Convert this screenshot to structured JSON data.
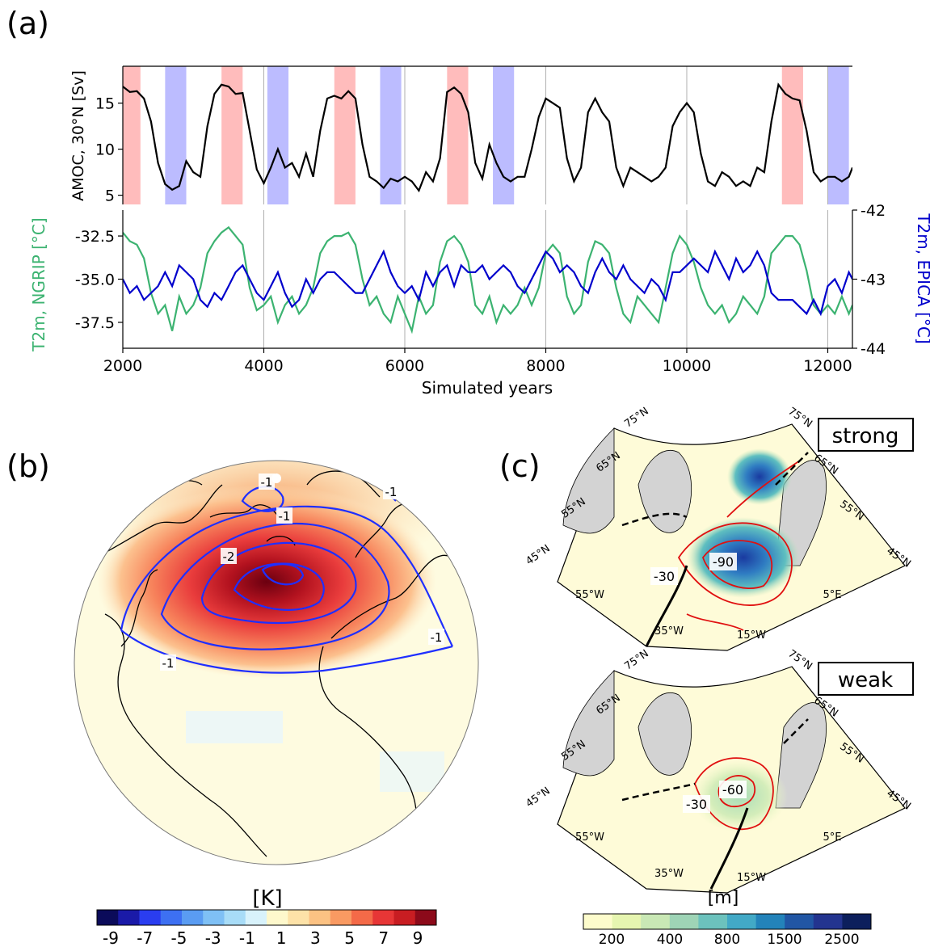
{
  "panel_labels": {
    "a": "(a)",
    "b": "(b)",
    "c": "(c)"
  },
  "panel_a": {
    "x_label": "Simulated years",
    "x_ticks": [
      "2000",
      "4000",
      "6000",
      "8000",
      "10000",
      "12000"
    ],
    "amoc_label": "AMOC, 30°N [Sv]",
    "amoc_ticks": [
      "5",
      "10",
      "15"
    ],
    "ngrip_label": "T2m, NGRIP [°C]",
    "ngrip_ticks": [
      "-32.5",
      "-35.0",
      "-37.5"
    ],
    "epica_label": "T2m, EPICA [°C]",
    "epica_ticks": [
      "-42",
      "-43",
      "-44"
    ]
  },
  "panel_b": {
    "contour_labels": [
      "-1",
      "-1",
      "-2",
      "-1",
      "-1",
      "-1"
    ],
    "colorbar_title": "[K]",
    "colorbar_ticks": [
      "-9",
      "-7",
      "-5",
      "-3",
      "-1",
      "1",
      "3",
      "5",
      "7",
      "9"
    ]
  },
  "panel_c": {
    "strong_title": "strong",
    "weak_title": "weak",
    "lat_labels": [
      "75°N",
      "65°N",
      "55°N",
      "45°N"
    ],
    "lon_labels": [
      "55°W",
      "35°W",
      "15°W",
      "5°E"
    ],
    "strong_contours": [
      "-30",
      "-90"
    ],
    "weak_contours": [
      "-30",
      "-60"
    ],
    "colorbar_title": "[m]",
    "colorbar_ticks": [
      "200",
      "400",
      "800",
      "1500",
      "2500"
    ]
  },
  "colors": {
    "amoc": "#000000",
    "ngrip": "#3cb371",
    "epica": "#0000cc",
    "strong_band": "#ffbcbc",
    "weak_band": "#bcbcff",
    "contour_b": "#1f2fff",
    "contour_c": "#e01010"
  },
  "chart_data": [
    {
      "type": "line",
      "title": "",
      "xlabel": "Simulated years",
      "ylabel": "AMOC, 30°N [Sv]",
      "xlim": [
        2000,
        12350
      ],
      "ylim": [
        4,
        19
      ],
      "grid": true,
      "strong_periods": [
        [
          2000,
          2250
        ],
        [
          3400,
          3700
        ],
        [
          5000,
          5300
        ],
        [
          6600,
          6900
        ],
        [
          11350,
          11650
        ]
      ],
      "weak_periods": [
        [
          2600,
          2900
        ],
        [
          4050,
          4350
        ],
        [
          5650,
          5950
        ],
        [
          7250,
          7550
        ],
        [
          12000,
          12300
        ]
      ],
      "series": [
        {
          "name": "AMOC, 30°N [Sv]",
          "x": [
            2000,
            2100,
            2200,
            2300,
            2400,
            2500,
            2600,
            2700,
            2800,
            2900,
            3000,
            3100,
            3200,
            3300,
            3400,
            3500,
            3600,
            3700,
            3800,
            3900,
            4000,
            4100,
            4200,
            4300,
            4400,
            4500,
            4600,
            4700,
            4800,
            4900,
            5000,
            5100,
            5200,
            5300,
            5400,
            5500,
            5600,
            5700,
            5800,
            5900,
            6000,
            6100,
            6200,
            6300,
            6400,
            6500,
            6600,
            6700,
            6800,
            6900,
            7000,
            7100,
            7200,
            7300,
            7400,
            7500,
            7600,
            7700,
            7800,
            7900,
            8000,
            8100,
            8200,
            8300,
            8400,
            8500,
            8600,
            8700,
            8800,
            8900,
            9000,
            9100,
            9200,
            9300,
            9400,
            9500,
            9600,
            9700,
            9800,
            9900,
            10000,
            10100,
            10200,
            10300,
            10400,
            10500,
            10600,
            10700,
            10800,
            10900,
            11000,
            11100,
            11200,
            11300,
            11400,
            11500,
            11600,
            11700,
            11800,
            11900,
            12000,
            12100,
            12200,
            12300,
            12350
          ],
          "values": [
            16.8,
            16.2,
            16.3,
            15.5,
            13.0,
            8.5,
            6.2,
            5.6,
            6.0,
            8.7,
            7.5,
            7.0,
            12.5,
            16.0,
            17.0,
            16.8,
            16.0,
            16.1,
            12.0,
            7.8,
            6.3,
            8.0,
            10.0,
            8.0,
            8.5,
            7.0,
            9.5,
            7.0,
            12.0,
            15.5,
            15.8,
            15.5,
            16.3,
            15.5,
            10.5,
            7.0,
            6.5,
            5.8,
            6.8,
            6.5,
            7.0,
            6.5,
            5.5,
            7.5,
            6.5,
            9.0,
            16.2,
            16.7,
            16.0,
            14.0,
            8.5,
            6.8,
            10.5,
            8.5,
            7.0,
            6.5,
            7.0,
            7.0,
            10.0,
            13.5,
            15.5,
            15.0,
            14.5,
            9.0,
            6.5,
            8.0,
            14.0,
            15.5,
            14.0,
            13.0,
            8.0,
            6.0,
            8.0,
            7.5,
            7.0,
            6.5,
            7.0,
            8.0,
            12.5,
            14.0,
            15.0,
            14.0,
            9.5,
            6.5,
            6.0,
            7.5,
            7.0,
            6.0,
            6.5,
            6.0,
            8.0,
            7.5,
            13.0,
            17.0,
            16.0,
            15.5,
            15.3,
            12.0,
            7.5,
            6.5,
            7.0,
            7.0,
            6.5,
            7.0,
            8.0
          ]
        },
        {
          "name": "T2m, NGRIP [°C]",
          "x": [
            2000,
            2100,
            2200,
            2300,
            2400,
            2500,
            2600,
            2700,
            2800,
            2900,
            3000,
            3100,
            3200,
            3300,
            3400,
            3500,
            3600,
            3700,
            3800,
            3900,
            4000,
            4100,
            4200,
            4300,
            4400,
            4500,
            4600,
            4700,
            4800,
            4900,
            5000,
            5100,
            5200,
            5300,
            5400,
            5500,
            5600,
            5700,
            5800,
            5900,
            6000,
            6100,
            6200,
            6300,
            6400,
            6500,
            6600,
            6700,
            6800,
            6900,
            7000,
            7100,
            7200,
            7300,
            7400,
            7500,
            7600,
            7700,
            7800,
            7900,
            8000,
            8100,
            8200,
            8300,
            8400,
            8500,
            8600,
            8700,
            8800,
            8900,
            9000,
            9100,
            9200,
            9300,
            9400,
            9500,
            9600,
            9700,
            9800,
            9900,
            10000,
            10100,
            10200,
            10300,
            10400,
            10500,
            10600,
            10700,
            10800,
            10900,
            11000,
            11100,
            11200,
            11300,
            11400,
            11500,
            11600,
            11700,
            11800,
            11900,
            12000,
            12100,
            12200,
            12300,
            12350
          ],
          "values": [
            -32.3,
            -32.8,
            -33.0,
            -33.8,
            -35.8,
            -37.0,
            -36.5,
            -38.0,
            -36.0,
            -37.0,
            -36.5,
            -35.5,
            -33.5,
            -32.8,
            -32.3,
            -32.0,
            -32.5,
            -33.0,
            -35.5,
            -36.8,
            -36.5,
            -36.0,
            -37.5,
            -36.5,
            -36.0,
            -37.0,
            -36.5,
            -35.5,
            -33.5,
            -32.8,
            -32.5,
            -32.5,
            -32.3,
            -33.0,
            -35.0,
            -36.5,
            -36.0,
            -37.0,
            -37.5,
            -36.0,
            -37.0,
            -38.0,
            -36.0,
            -37.0,
            -36.5,
            -34.0,
            -32.8,
            -32.5,
            -33.0,
            -34.0,
            -36.5,
            -37.0,
            -36.0,
            -37.5,
            -36.5,
            -37.0,
            -36.5,
            -35.5,
            -36.5,
            -35.5,
            -33.5,
            -33.0,
            -33.5,
            -36.0,
            -37.0,
            -36.5,
            -34.0,
            -32.8,
            -33.0,
            -33.5,
            -35.5,
            -37.0,
            -37.5,
            -36.0,
            -36.5,
            -37.0,
            -37.5,
            -35.5,
            -33.5,
            -32.5,
            -33.0,
            -34.0,
            -35.5,
            -36.5,
            -37.0,
            -36.5,
            -37.5,
            -37.0,
            -36.0,
            -36.5,
            -37.0,
            -36.0,
            -33.5,
            -33.0,
            -32.5,
            -32.5,
            -33.0,
            -34.5,
            -36.5,
            -37.0,
            -36.5,
            -37.0,
            -36.0,
            -37.0,
            -36.5
          ]
        },
        {
          "name": "T2m, EPICA [°C]",
          "x": [
            2000,
            2100,
            2200,
            2300,
            2400,
            2500,
            2600,
            2700,
            2800,
            2900,
            3000,
            3100,
            3200,
            3300,
            3400,
            3500,
            3600,
            3700,
            3800,
            3900,
            4000,
            4100,
            4200,
            4300,
            4400,
            4500,
            4600,
            4700,
            4800,
            4900,
            5000,
            5100,
            5200,
            5300,
            5400,
            5500,
            5600,
            5700,
            5800,
            5900,
            6000,
            6100,
            6200,
            6300,
            6400,
            6500,
            6600,
            6700,
            6800,
            6900,
            7000,
            7100,
            7200,
            7300,
            7400,
            7500,
            7600,
            7700,
            7800,
            7900,
            8000,
            8100,
            8200,
            8300,
            8400,
            8500,
            8600,
            8700,
            8800,
            8900,
            9000,
            9100,
            9200,
            9300,
            9400,
            9500,
            9600,
            9700,
            9800,
            9900,
            10000,
            10100,
            10200,
            10300,
            10400,
            10500,
            10600,
            10700,
            10800,
            10900,
            11000,
            11100,
            11200,
            11300,
            11400,
            11500,
            11600,
            11700,
            11800,
            11900,
            12000,
            12100,
            12200,
            12300,
            12350
          ],
          "values": [
            -43.0,
            -43.2,
            -43.1,
            -43.3,
            -43.2,
            -43.1,
            -42.9,
            -43.1,
            -42.8,
            -42.9,
            -43.0,
            -43.3,
            -43.4,
            -43.2,
            -43.3,
            -43.1,
            -42.9,
            -42.8,
            -43.0,
            -43.2,
            -43.3,
            -43.1,
            -42.9,
            -43.2,
            -43.4,
            -43.3,
            -43.0,
            -43.2,
            -43.0,
            -42.9,
            -42.9,
            -43.0,
            -43.1,
            -43.2,
            -43.2,
            -43.0,
            -42.8,
            -42.6,
            -42.9,
            -43.1,
            -43.2,
            -43.1,
            -43.3,
            -42.9,
            -43.1,
            -42.9,
            -42.8,
            -43.1,
            -42.8,
            -42.9,
            -42.9,
            -42.8,
            -43.0,
            -42.9,
            -42.8,
            -42.9,
            -43.1,
            -43.2,
            -43.0,
            -42.8,
            -42.6,
            -42.7,
            -42.9,
            -42.8,
            -42.9,
            -43.1,
            -43.2,
            -42.9,
            -42.7,
            -42.9,
            -43.0,
            -42.8,
            -43.0,
            -43.1,
            -43.2,
            -43.0,
            -43.1,
            -43.3,
            -42.9,
            -42.9,
            -42.8,
            -42.7,
            -42.8,
            -42.9,
            -42.6,
            -42.8,
            -43.0,
            -42.7,
            -42.9,
            -42.8,
            -42.6,
            -42.8,
            -43.2,
            -43.3,
            -43.3,
            -43.3,
            -43.4,
            -43.5,
            -43.3,
            -43.5,
            -43.1,
            -43.0,
            -43.2,
            -42.9,
            -43.0
          ]
        }
      ],
      "secondary_y": {
        "series": "T2m, EPICA [°C]",
        "ylim": [
          -44,
          -42
        ]
      },
      "ngrip_ylim": [
        -39.0,
        -31.0
      ],
      "amoc_ylim": [
        4,
        19
      ]
    },
    {
      "type": "heatmap",
      "title": "",
      "colorbar_label": "[K]",
      "colorbar_levels": [
        -9,
        -7,
        -5,
        -3,
        -1,
        1,
        3,
        5,
        7,
        9
      ]
    },
    {
      "type": "heatmap",
      "title": "strong / weak",
      "colorbar_label": "[m]",
      "colorbar_levels": [
        200,
        400,
        800,
        1500,
        2500
      ]
    }
  ]
}
